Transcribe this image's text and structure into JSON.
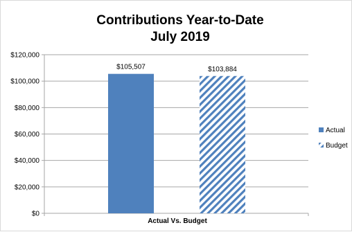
{
  "chart_data": {
    "type": "bar",
    "title": "Contributions Year-to-Date",
    "subtitle": "July 2019",
    "categories": [
      "Actual Vs. Budget"
    ],
    "xlabel": "",
    "ylabel": "",
    "ylim": [
      0,
      120000
    ],
    "yticks": [
      {
        "value": 0,
        "label": "$0"
      },
      {
        "value": 20000,
        "label": "$20,000"
      },
      {
        "value": 40000,
        "label": "$40,000"
      },
      {
        "value": 60000,
        "label": "$60,000"
      },
      {
        "value": 80000,
        "label": "$80,000"
      },
      {
        "value": 100000,
        "label": "$100,000"
      },
      {
        "value": 120000,
        "label": "$120,000"
      }
    ],
    "grid": true,
    "legend_position": "right",
    "series": [
      {
        "name": "Actual",
        "values": [
          105507
        ],
        "data_label": "$105,507",
        "color": "#4f81bd",
        "pattern": "solid"
      },
      {
        "name": "Budget",
        "values": [
          103884
        ],
        "data_label": "$103,884",
        "color": "#4f81bd",
        "pattern": "diagonal-stripes"
      }
    ]
  }
}
